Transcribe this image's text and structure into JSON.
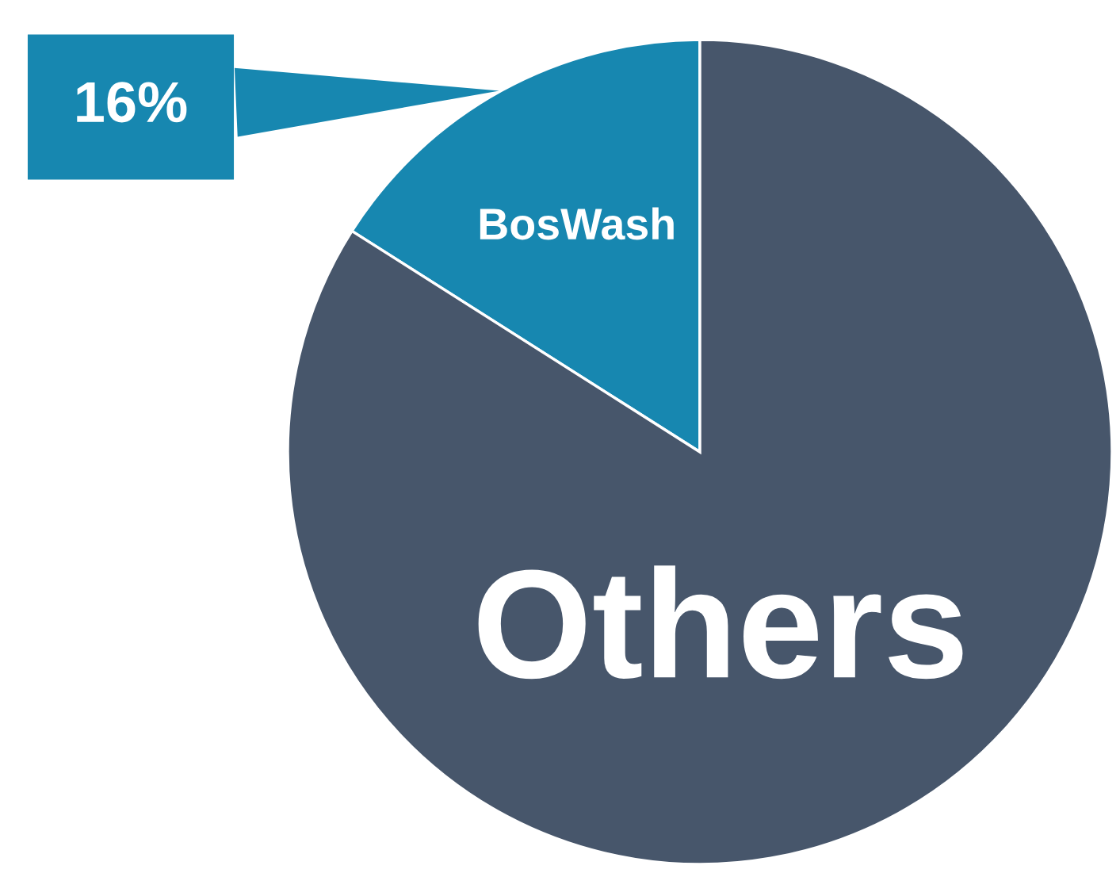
{
  "chart_data": {
    "type": "pie",
    "categories": [
      "BosWash",
      "Others"
    ],
    "values": [
      16,
      84
    ],
    "colors": [
      "#1787b0",
      "#47566b"
    ],
    "value_labels": [
      "16%",
      null
    ]
  }
}
